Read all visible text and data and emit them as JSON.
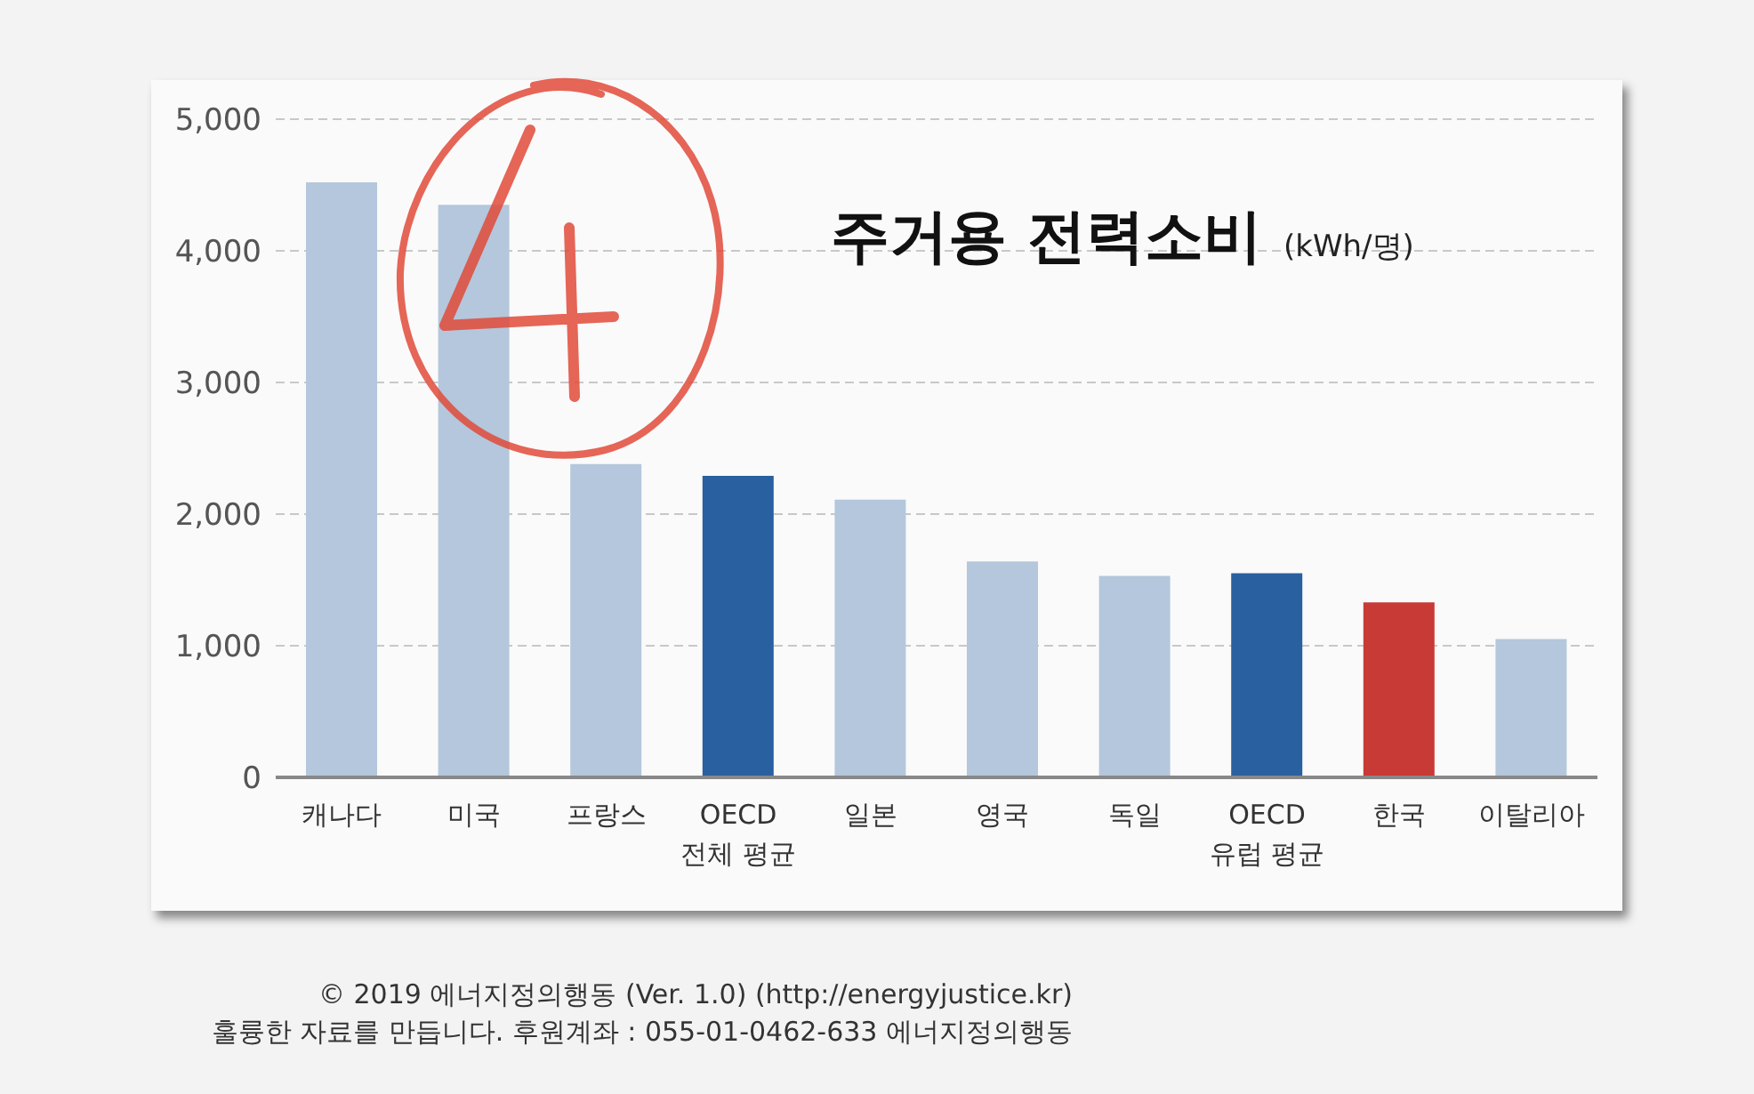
{
  "chart_data": {
    "type": "bar",
    "title": "주거용 전력소비",
    "subtitle": "(kWh/명)",
    "categories": [
      "캐나다",
      "미국",
      "프랑스",
      "OECD\n전체 평균",
      "일본",
      "영국",
      "독일",
      "OECD\n유럽 평균",
      "한국",
      "이탈리아"
    ],
    "values": [
      4520,
      4350,
      2380,
      2290,
      2110,
      1640,
      1530,
      1550,
      1330,
      1050
    ],
    "colors": [
      "#b4c7dc",
      "#b4c7dc",
      "#b4c7dc",
      "#2860a0",
      "#b4c7dc",
      "#b4c7dc",
      "#b4c7dc",
      "#2860a0",
      "#c83a36",
      "#b4c7dc"
    ],
    "ylim": [
      0,
      5000
    ],
    "yticks": [
      {
        "value": 0,
        "label": "0"
      },
      {
        "value": 1000,
        "label": "1,000"
      },
      {
        "value": 2000,
        "label": "2,000"
      },
      {
        "value": 3000,
        "label": "3,000"
      },
      {
        "value": 4000,
        "label": "4,000"
      },
      {
        "value": 5000,
        "label": "5,000"
      }
    ],
    "grid": "y",
    "legend": false,
    "annotations": [
      "© 2019 에너지정의행동 (Ver. 1.0) (http://energyjustice.kr)",
      "훌륭한 자료를 만듭니다. 후원계좌 : 055-01-0462-633 에너지정의행동"
    ]
  }
}
